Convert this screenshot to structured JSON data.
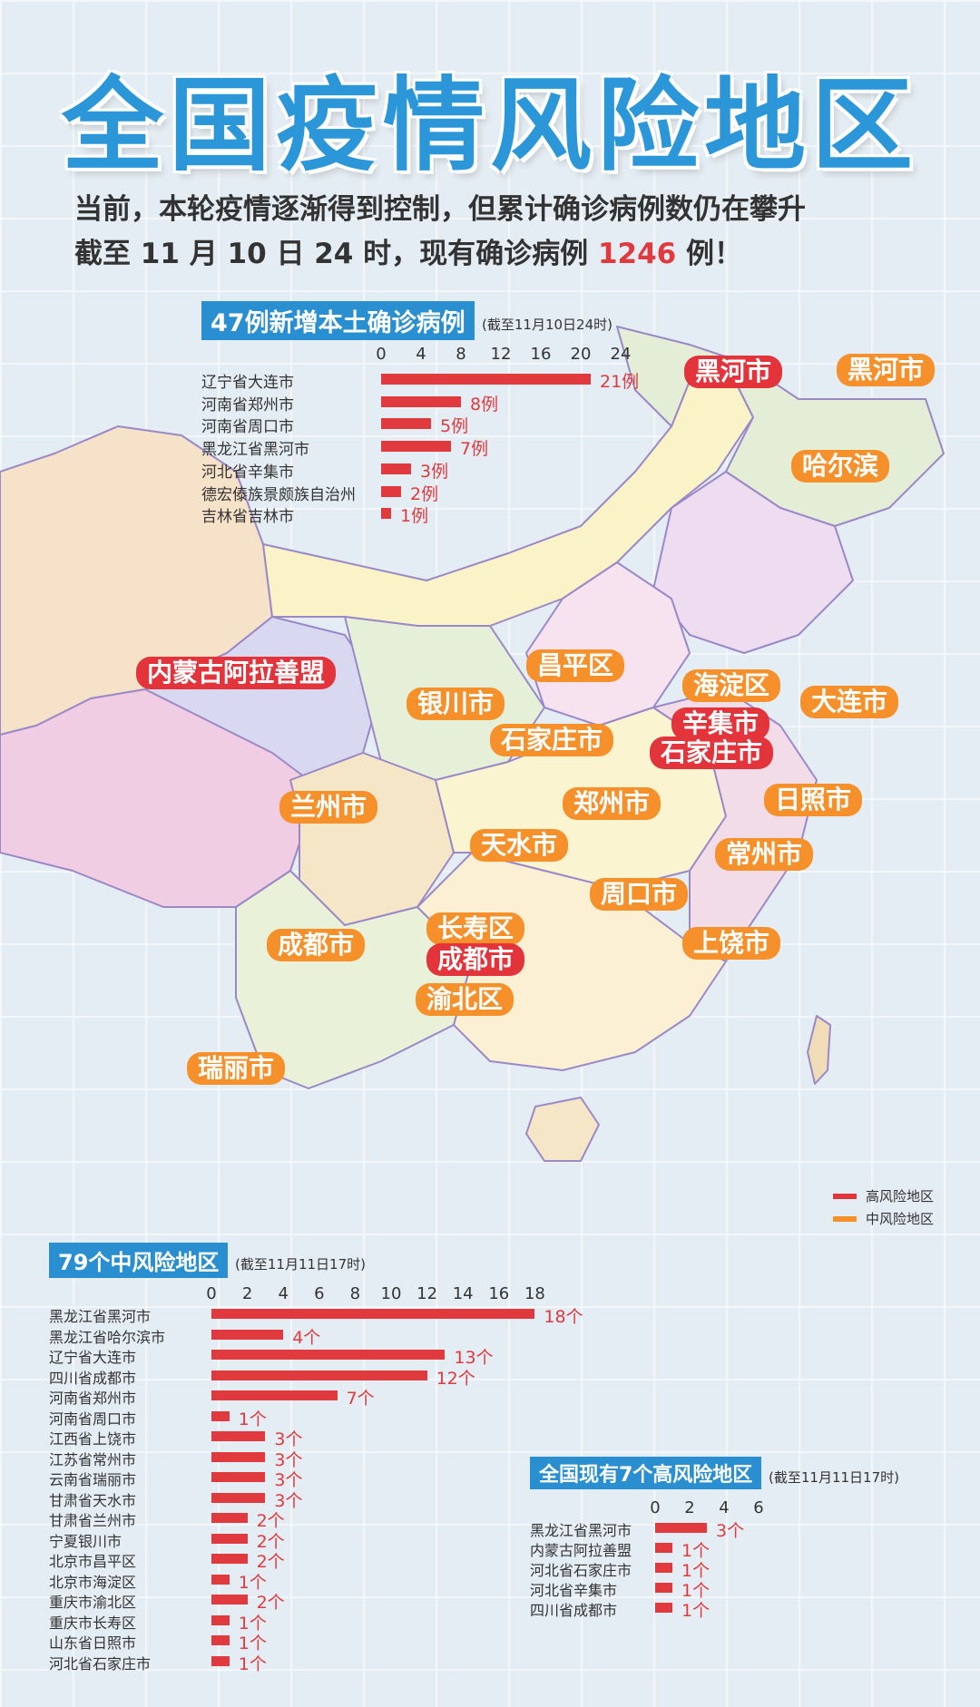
{
  "title": "全国疫情风险地区",
  "subtitle": {
    "line1": "当前，本轮疫情逐渐得到控制，但累计确诊病例数仍在攀升",
    "line2_pre": "截至 11 月 10 日 24 时，现有确诊病例 ",
    "line2_num": "1246",
    "line2_post": " 例！"
  },
  "colors": {
    "high": "#e3333b",
    "medium": "#f5902b",
    "bar": "#e0393e",
    "title_box": "#2a8fd0",
    "title": "#2b97d8"
  },
  "legend": {
    "high": "高风险地区",
    "medium": "中风险地区"
  },
  "map_labels": [
    {
      "text": "黑河市",
      "risk": "high"
    },
    {
      "text": "黑河市",
      "risk": "medium"
    },
    {
      "text": "哈尔滨",
      "risk": "medium"
    },
    {
      "text": "内蒙古阿拉善盟",
      "risk": "high"
    },
    {
      "text": "昌平区",
      "risk": "medium"
    },
    {
      "text": "海淀区",
      "risk": "medium"
    },
    {
      "text": "大连市",
      "risk": "medium"
    },
    {
      "text": "银川市",
      "risk": "medium"
    },
    {
      "text": "石家庄市",
      "risk": "medium"
    },
    {
      "text": "辛集市",
      "risk": "high"
    },
    {
      "text": "石家庄市",
      "risk": "high"
    },
    {
      "text": "日照市",
      "risk": "medium"
    },
    {
      "text": "兰州市",
      "risk": "medium"
    },
    {
      "text": "郑州市",
      "risk": "medium"
    },
    {
      "text": "天水市",
      "risk": "medium"
    },
    {
      "text": "常州市",
      "risk": "medium"
    },
    {
      "text": "周口市",
      "risk": "medium"
    },
    {
      "text": "长寿区",
      "risk": "medium"
    },
    {
      "text": "成都市",
      "risk": "medium"
    },
    {
      "text": "成都市",
      "risk": "high"
    },
    {
      "text": "上饶市",
      "risk": "medium"
    },
    {
      "text": "渝北区",
      "risk": "medium"
    },
    {
      "text": "瑞丽市",
      "risk": "medium"
    }
  ],
  "chart_data": [
    {
      "type": "bar",
      "orientation": "horizontal",
      "title": "47例新增本土确诊病例",
      "subtitle": "(截至11月10日24时)",
      "unit": "例",
      "xlim": [
        0,
        24
      ],
      "ticks": [
        0,
        4,
        8,
        12,
        16,
        20,
        24
      ],
      "categories": [
        "辽宁省大连市",
        "河南省郑州市",
        "河南省周口市",
        "黑龙江省黑河市",
        "河北省辛集市",
        "德宏傣族景颇族自治州",
        "吉林省吉林市"
      ],
      "values": [
        21,
        8,
        5,
        7,
        3,
        2,
        1
      ]
    },
    {
      "type": "bar",
      "orientation": "horizontal",
      "title": "79个中风险地区",
      "subtitle": "(截至11月11日17时)",
      "unit": "个",
      "xlim": [
        0,
        18
      ],
      "ticks": [
        0,
        2,
        4,
        6,
        8,
        10,
        12,
        14,
        16,
        18
      ],
      "categories": [
        "黑龙江省黑河市",
        "黑龙江省哈尔滨市",
        "辽宁省大连市",
        "四川省成都市",
        "河南省郑州市",
        "河南省周口市",
        "江西省上饶市",
        "江苏省常州市",
        "云南省瑞丽市",
        "甘肃省天水市",
        "甘肃省兰州市",
        "宁夏银川市",
        "北京市昌平区",
        "北京市海淀区",
        "重庆市渝北区",
        "重庆市长寿区",
        "山东省日照市",
        "河北省石家庄市"
      ],
      "values": [
        18,
        4,
        13,
        12,
        7,
        1,
        3,
        3,
        3,
        3,
        2,
        2,
        2,
        1,
        2,
        1,
        1,
        1
      ]
    },
    {
      "type": "bar",
      "orientation": "horizontal",
      "title": "全国现有7个高风险地区",
      "subtitle": "(截至11月11日17时)",
      "unit": "个",
      "xlim": [
        0,
        6
      ],
      "ticks": [
        0,
        2,
        4,
        6
      ],
      "categories": [
        "黑龙江省黑河市",
        "内蒙古阿拉善盟",
        "河北省石家庄市",
        "河北省辛集市",
        "四川省成都市"
      ],
      "values": [
        3,
        1,
        1,
        1,
        1
      ]
    }
  ]
}
